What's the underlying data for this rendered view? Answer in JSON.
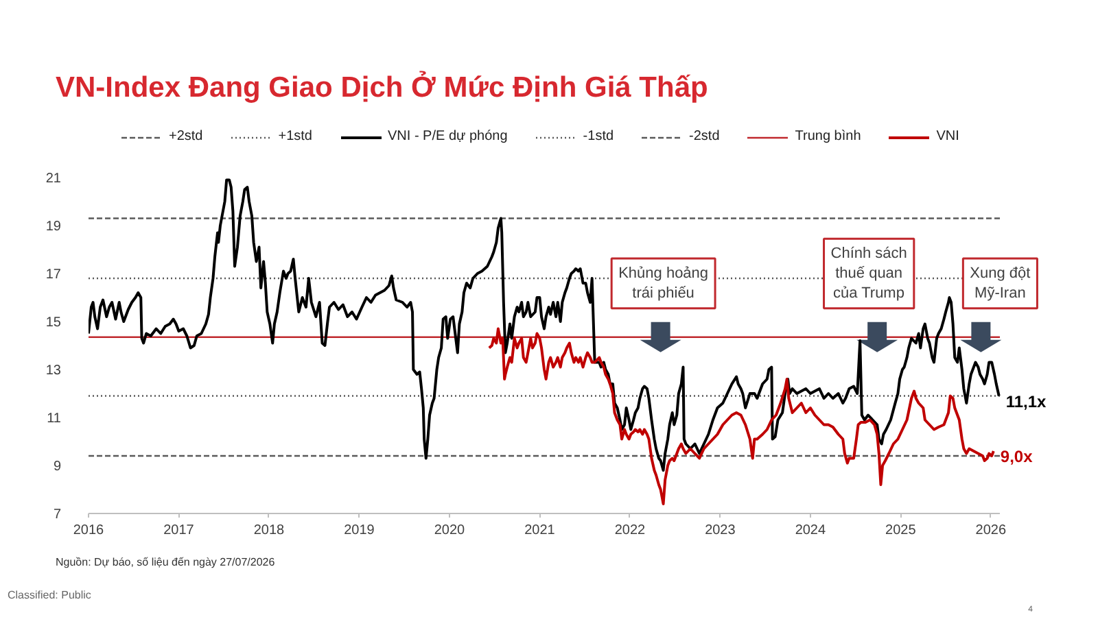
{
  "chart_data": {
    "type": "line",
    "title": "VN-Index Đang Giao Dịch Ở Mức Định Giá Thấp",
    "xlim": [
      2016,
      2026.1
    ],
    "xticks": [
      2016,
      2017,
      2018,
      2019,
      2020,
      2021,
      2022,
      2023,
      2024,
      2025,
      2026
    ],
    "ylim": [
      7,
      21
    ],
    "yticks": [
      7,
      9,
      11,
      13,
      15,
      17,
      19,
      21
    ],
    "grid": false,
    "legend": "top",
    "ref_lines": [
      {
        "axis": "y",
        "value": 19.3,
        "label": "+2std",
        "color": "#595959",
        "line_style": "dashed"
      },
      {
        "axis": "y",
        "value": 16.8,
        "label": "+1std",
        "color": "#595959",
        "line_style": "dotted"
      },
      {
        "axis": "y",
        "value": 11.9,
        "label": "-1std",
        "color": "#595959",
        "line_style": "dotted"
      },
      {
        "axis": "y",
        "value": 9.4,
        "label": "-2std",
        "color": "#595959",
        "line_style": "dashed"
      },
      {
        "axis": "y",
        "value": 14.35,
        "label": "Trung bình",
        "color": "#c0282d",
        "line_style": "solid"
      }
    ],
    "series": [
      {
        "name": "VNI - P/E dự phóng",
        "color": "#000000",
        "x": [
          2016.0,
          2016.03,
          2016.05,
          2016.07,
          2016.1,
          2016.13,
          2016.16,
          2016.2,
          2016.23,
          2016.26,
          2016.3,
          2016.34,
          2016.36,
          2016.39,
          2016.44,
          2016.48,
          2016.52,
          2016.55,
          2016.58,
          2016.59,
          2016.61,
          2016.64,
          2016.69,
          2016.75,
          2016.8,
          2016.85,
          2016.9,
          2016.94,
          2016.97,
          2017.0,
          2017.05,
          2017.09,
          2017.13,
          2017.17,
          2017.2,
          2017.25,
          2017.3,
          2017.33,
          2017.35,
          2017.38,
          2017.4,
          2017.43,
          2017.44,
          2017.46,
          2017.51,
          2017.53,
          2017.56,
          2017.58,
          2017.6,
          2017.62,
          2017.65,
          2017.68,
          2017.71,
          2017.73,
          2017.76,
          2017.78,
          2017.81,
          2017.83,
          2017.86,
          2017.89,
          2017.91,
          2017.94,
          2017.96,
          2017.98,
          2018.01,
          2018.04,
          2018.06,
          2018.09,
          2018.12,
          2018.16,
          2018.19,
          2018.21,
          2018.24,
          2018.27,
          2018.29,
          2018.33,
          2018.37,
          2018.41,
          2018.44,
          2018.47,
          2018.52,
          2018.56,
          2018.59,
          2018.62,
          2018.65,
          2018.67,
          2018.72,
          2018.77,
          2018.82,
          2018.87,
          2018.92,
          2018.97,
          2019.03,
          2019.08,
          2019.13,
          2019.18,
          2019.23,
          2019.28,
          2019.33,
          2019.36,
          2019.38,
          2019.41,
          2019.48,
          2019.53,
          2019.57,
          2019.59,
          2019.6,
          2019.64,
          2019.67,
          2019.69,
          2019.71,
          2019.72,
          2019.74,
          2019.76,
          2019.78,
          2019.81,
          2019.83,
          2019.86,
          2019.88,
          2019.91,
          2019.93,
          2019.96,
          2019.98,
          2020.01,
          2020.04,
          2020.06,
          2020.09,
          2020.11,
          2020.14,
          2020.16,
          2020.19,
          2020.23,
          2020.26,
          2020.31,
          2020.36,
          2020.42,
          2020.47,
          2020.49,
          2020.52,
          2020.54,
          2020.57,
          2020.58,
          2020.6,
          2020.62,
          2020.64,
          2020.67,
          2020.69,
          2020.72,
          2020.75,
          2020.77,
          2020.8,
          2020.82,
          2020.85,
          2020.87,
          2020.9,
          2020.95,
          2020.97,
          2021.0,
          2021.02,
          2021.05,
          2021.07,
          2021.1,
          2021.12,
          2021.15,
          2021.18,
          2021.2,
          2021.23,
          2021.25,
          2021.28,
          2021.3,
          2021.33,
          2021.35,
          2021.38,
          2021.4,
          2021.43,
          2021.45,
          2021.48,
          2021.51,
          2021.53,
          2021.56,
          2021.58,
          2021.61,
          2021.66,
          2021.68,
          2021.71,
          2021.73,
          2021.76,
          2021.78,
          2021.81,
          2021.83,
          2021.86,
          2021.89,
          2021.91,
          2021.94,
          2021.96,
          2021.99,
          2022.01,
          2022.04,
          2022.06,
          2022.09,
          2022.11,
          2022.14,
          2022.16,
          2022.19,
          2022.21,
          2022.24,
          2022.27,
          2022.29,
          2022.32,
          2022.34,
          2022.37,
          2022.39,
          2022.42,
          2022.44,
          2022.47,
          2022.49,
          2022.52,
          2022.54,
          2022.57,
          2022.59,
          2022.6,
          2022.62,
          2022.67,
          2022.72,
          2022.77,
          2022.82,
          2022.87,
          2022.92,
          2022.97,
          2023.03,
          2023.08,
          2023.13,
          2023.18,
          2023.2,
          2023.23,
          2023.25,
          2023.28,
          2023.33,
          2023.38,
          2023.41,
          2023.47,
          2023.52,
          2023.54,
          2023.57,
          2023.58,
          2023.61,
          2023.64,
          2023.69,
          2023.72,
          2023.75,
          2023.77,
          2023.8,
          2023.85,
          2023.9,
          2023.95,
          2024.0,
          2024.05,
          2024.1,
          2024.15,
          2024.2,
          2024.25,
          2024.31,
          2024.36,
          2024.39,
          2024.43,
          2024.48,
          2024.52,
          2024.55,
          2024.57,
          2024.6,
          2024.64,
          2024.69,
          2024.74,
          2024.76,
          2024.79,
          2024.81,
          2024.84,
          2024.89,
          2024.94,
          2024.97,
          2024.99,
          2025.02,
          2025.04,
          2025.07,
          2025.09,
          2025.12,
          2025.17,
          2025.2,
          2025.22,
          2025.25,
          2025.27,
          2025.3,
          2025.32,
          2025.35,
          2025.37,
          2025.4,
          2025.42,
          2025.45,
          2025.48,
          2025.5,
          2025.53,
          2025.54,
          2025.56,
          2025.58,
          2025.6,
          2025.63,
          2025.65,
          2025.68,
          2025.7,
          2025.73,
          2025.76,
          2025.78,
          2025.81,
          2025.83,
          2025.86,
          2025.88,
          2025.91,
          2025.93,
          2025.96,
          2025.98,
          2026.01,
          2026.04,
          2026.06,
          2026.09
        ],
        "values": [
          14.5,
          15.6,
          15.8,
          15.2,
          14.7,
          15.6,
          15.9,
          15.2,
          15.6,
          15.8,
          15.1,
          15.8,
          15.4,
          15.0,
          15.5,
          15.8,
          16.0,
          16.2,
          16.0,
          14.3,
          14.1,
          14.5,
          14.4,
          14.7,
          14.5,
          14.8,
          14.9,
          15.1,
          14.9,
          14.6,
          14.7,
          14.4,
          13.9,
          14.0,
          14.4,
          14.5,
          14.9,
          15.3,
          16.0,
          16.8,
          17.7,
          18.7,
          18.3,
          19.0,
          20.0,
          20.9,
          20.9,
          20.6,
          19.6,
          17.3,
          18.1,
          19.4,
          20.0,
          20.5,
          20.6,
          20.0,
          19.4,
          18.3,
          17.5,
          18.1,
          16.4,
          17.5,
          16.6,
          15.4,
          14.9,
          14.1,
          14.9,
          15.4,
          16.2,
          17.1,
          16.8,
          17.0,
          17.1,
          17.6,
          16.8,
          15.4,
          16.0,
          15.6,
          16.8,
          15.8,
          15.2,
          15.8,
          14.1,
          14.0,
          15.0,
          15.6,
          15.8,
          15.5,
          15.7,
          15.2,
          15.4,
          15.1,
          15.6,
          16.0,
          15.8,
          16.1,
          16.2,
          16.3,
          16.5,
          16.9,
          16.4,
          15.9,
          15.8,
          15.6,
          15.8,
          15.4,
          13.0,
          12.8,
          12.9,
          12.2,
          11.4,
          10.1,
          9.3,
          10.1,
          11.1,
          11.6,
          11.8,
          13.0,
          13.5,
          13.9,
          15.1,
          15.2,
          14.3,
          15.1,
          15.2,
          14.6,
          13.7,
          14.9,
          15.4,
          16.2,
          16.6,
          16.4,
          16.8,
          17.0,
          17.1,
          17.3,
          17.7,
          17.9,
          18.3,
          18.9,
          19.3,
          18.7,
          15.8,
          13.7,
          14.1,
          14.9,
          14.3,
          15.2,
          15.6,
          15.4,
          15.8,
          15.2,
          15.4,
          15.8,
          15.2,
          15.4,
          16.0,
          16.0,
          15.2,
          14.7,
          15.2,
          15.6,
          15.3,
          15.8,
          15.2,
          15.8,
          15.0,
          15.8,
          16.2,
          16.4,
          16.8,
          17.0,
          17.1,
          17.2,
          17.1,
          17.2,
          16.6,
          16.6,
          16.2,
          15.8,
          16.8,
          13.3,
          13.3,
          13.1,
          13.3,
          13.0,
          12.8,
          12.4,
          12.4,
          11.6,
          11.4,
          10.9,
          10.5,
          10.7,
          11.4,
          10.9,
          10.5,
          10.9,
          11.2,
          11.4,
          11.8,
          12.2,
          12.3,
          12.2,
          11.8,
          10.9,
          10.1,
          9.7,
          9.3,
          9.2,
          8.8,
          9.5,
          10.1,
          10.7,
          11.2,
          10.7,
          11.1,
          12.0,
          12.4,
          13.1,
          10.1,
          9.9,
          9.7,
          9.9,
          9.5,
          9.9,
          10.3,
          10.9,
          11.4,
          11.6,
          12.0,
          12.4,
          12.7,
          12.4,
          12.2,
          12.0,
          11.4,
          12.0,
          12.0,
          11.8,
          12.4,
          12.6,
          13.0,
          13.1,
          10.1,
          10.2,
          10.9,
          11.2,
          12.0,
          12.6,
          12.0,
          12.2,
          12.0,
          12.1,
          12.2,
          12.0,
          12.1,
          12.2,
          11.8,
          12.0,
          11.8,
          12.0,
          11.6,
          11.8,
          12.2,
          12.3,
          12.0,
          14.2,
          11.1,
          10.9,
          11.1,
          10.9,
          10.7,
          10.1,
          9.9,
          10.3,
          10.5,
          10.9,
          11.6,
          12.0,
          12.6,
          13.0,
          13.1,
          13.5,
          13.9,
          14.3,
          14.1,
          14.5,
          13.9,
          14.7,
          14.9,
          14.3,
          14.1,
          13.5,
          13.3,
          14.3,
          14.5,
          14.7,
          15.1,
          15.4,
          15.8,
          16.0,
          15.8,
          14.9,
          13.5,
          13.3,
          13.9,
          13.0,
          12.2,
          11.6,
          12.4,
          12.8,
          13.1,
          13.3,
          13.1,
          12.8,
          12.6,
          12.4,
          12.8,
          13.3,
          13.3,
          12.8,
          12.4,
          11.9
        ]
      },
      {
        "name": "VNI",
        "color": "#c00000",
        "x": [
          2020.44,
          2020.47,
          2020.49,
          2020.52,
          2020.54,
          2020.57,
          2020.59,
          2020.61,
          2020.62,
          2020.64,
          2020.67,
          2020.69,
          2020.72,
          2020.75,
          2020.77,
          2020.8,
          2020.82,
          2020.85,
          2020.87,
          2020.9,
          2020.92,
          2020.95,
          2020.97,
          2021.0,
          2021.02,
          2021.05,
          2021.07,
          2021.1,
          2021.12,
          2021.15,
          2021.18,
          2021.2,
          2021.23,
          2021.25,
          2021.28,
          2021.3,
          2021.33,
          2021.35,
          2021.38,
          2021.4,
          2021.43,
          2021.45,
          2021.48,
          2021.51,
          2021.53,
          2021.56,
          2021.58,
          2021.61,
          2021.66,
          2021.68,
          2021.71,
          2021.73,
          2021.76,
          2021.78,
          2021.81,
          2021.83,
          2021.86,
          2021.89,
          2021.91,
          2021.94,
          2021.96,
          2021.99,
          2022.01,
          2022.04,
          2022.06,
          2022.09,
          2022.11,
          2022.14,
          2022.16,
          2022.19,
          2022.21,
          2022.24,
          2022.27,
          2022.29,
          2022.32,
          2022.34,
          2022.37,
          2022.39,
          2022.42,
          2022.44,
          2022.47,
          2022.49,
          2022.52,
          2022.54,
          2022.57,
          2022.59,
          2022.62,
          2022.67,
          2022.72,
          2022.77,
          2022.82,
          2022.87,
          2022.92,
          2022.97,
          2023.03,
          2023.08,
          2023.13,
          2023.18,
          2023.23,
          2023.28,
          2023.33,
          2023.36,
          2023.38,
          2023.41,
          2023.47,
          2023.52,
          2023.57,
          2023.62,
          2023.67,
          2023.72,
          2023.74,
          2023.76,
          2023.8,
          2023.85,
          2023.9,
          2023.95,
          2024.0,
          2024.05,
          2024.1,
          2024.15,
          2024.2,
          2024.25,
          2024.31,
          2024.36,
          2024.38,
          2024.41,
          2024.43,
          2024.48,
          2024.51,
          2024.53,
          2024.56,
          2024.61,
          2024.66,
          2024.71,
          2024.74,
          2024.76,
          2024.78,
          2024.8,
          2024.83,
          2024.87,
          2024.92,
          2024.97,
          2025.02,
          2025.07,
          2025.12,
          2025.15,
          2025.17,
          2025.2,
          2025.25,
          2025.27,
          2025.32,
          2025.37,
          2025.42,
          2025.48,
          2025.53,
          2025.55,
          2025.58,
          2025.6,
          2025.65,
          2025.68,
          2025.7,
          2025.73,
          2025.76,
          2025.81,
          2025.86,
          2025.91,
          2025.93,
          2025.96,
          2025.98,
          2026.01,
          2026.03
        ],
        "values": [
          13.9,
          14.0,
          14.3,
          14.1,
          14.7,
          14.1,
          14.3,
          12.6,
          12.8,
          13.1,
          13.5,
          13.3,
          14.3,
          13.9,
          14.1,
          14.3,
          13.5,
          13.3,
          13.7,
          14.3,
          13.9,
          14.1,
          14.5,
          14.3,
          13.9,
          13.0,
          12.6,
          13.3,
          13.5,
          13.1,
          13.3,
          13.5,
          13.1,
          13.5,
          13.7,
          13.9,
          14.1,
          13.7,
          13.3,
          13.5,
          13.3,
          13.5,
          13.1,
          13.5,
          13.7,
          13.5,
          13.3,
          13.3,
          13.5,
          13.3,
          13.1,
          12.8,
          12.6,
          12.4,
          12.0,
          11.2,
          10.9,
          10.7,
          10.1,
          10.5,
          10.3,
          10.1,
          10.3,
          10.4,
          10.5,
          10.4,
          10.5,
          10.3,
          10.5,
          10.3,
          10.1,
          9.3,
          8.8,
          8.6,
          8.2,
          8.0,
          7.4,
          8.4,
          9.0,
          9.2,
          9.3,
          9.2,
          9.5,
          9.7,
          9.9,
          9.7,
          9.5,
          9.7,
          9.5,
          9.3,
          9.7,
          9.9,
          10.1,
          10.3,
          10.7,
          10.9,
          11.1,
          11.2,
          11.1,
          10.7,
          10.1,
          9.3,
          10.1,
          10.1,
          10.3,
          10.5,
          10.9,
          11.1,
          11.6,
          12.2,
          12.6,
          11.8,
          11.2,
          11.4,
          11.6,
          11.2,
          11.4,
          11.1,
          10.9,
          10.7,
          10.7,
          10.6,
          10.3,
          10.1,
          9.5,
          9.1,
          9.3,
          9.3,
          10.1,
          10.7,
          10.8,
          10.8,
          10.9,
          10.7,
          10.3,
          9.5,
          8.2,
          9.0,
          9.2,
          9.5,
          9.9,
          10.1,
          10.5,
          10.9,
          11.8,
          12.1,
          11.8,
          11.6,
          11.4,
          10.9,
          10.7,
          10.5,
          10.6,
          10.7,
          11.2,
          11.9,
          11.8,
          11.4,
          10.9,
          10.1,
          9.7,
          9.5,
          9.7,
          9.6,
          9.5,
          9.4,
          9.2,
          9.3,
          9.5,
          9.4,
          9.6
        ]
      }
    ],
    "annotations": [
      {
        "text": "Khủng hoảng trái phiếu",
        "x": 2022.34,
        "y": 14.35
      },
      {
        "text": "Chính sách thuế quan của Trump",
        "x": 2024.74,
        "y": 14.35
      },
      {
        "text": "Xung đột Mỹ-Iran",
        "x": 2025.89,
        "y": 14.35
      },
      {
        "text": "11,1x",
        "x": 2026.09,
        "y": 11.9
      },
      {
        "text": "9,0x",
        "x": 2026.03,
        "y": 9.6
      },
      "Nguồn: Dự báo, số liệu đến ngày 27/07/2026",
      "Classified: Public",
      "4"
    ]
  }
}
